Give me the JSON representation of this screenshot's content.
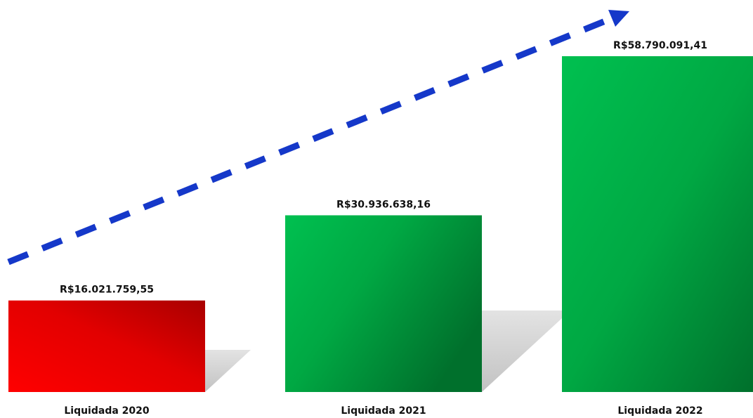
{
  "chart_data": {
    "type": "bar",
    "categories": [
      "Liquidada 2020",
      "Liquidada 2021",
      "Liquidada 2022"
    ],
    "values": [
      16021759.55,
      30936638.16,
      58790091.41
    ],
    "value_labels": [
      "R$16.021.759,55",
      "R$30.936.638,16",
      "R$58.790.091,41"
    ],
    "bar_colors": [
      "#e00000",
      "#00a843",
      "#00a843"
    ],
    "title": "",
    "xlabel": "",
    "ylabel": "",
    "ylim": [
      0,
      58790091.41
    ],
    "grid": false,
    "legend": "none",
    "trend_arrow": {
      "style": "dashed",
      "color": "#1538c9",
      "direction": "up-right"
    }
  }
}
